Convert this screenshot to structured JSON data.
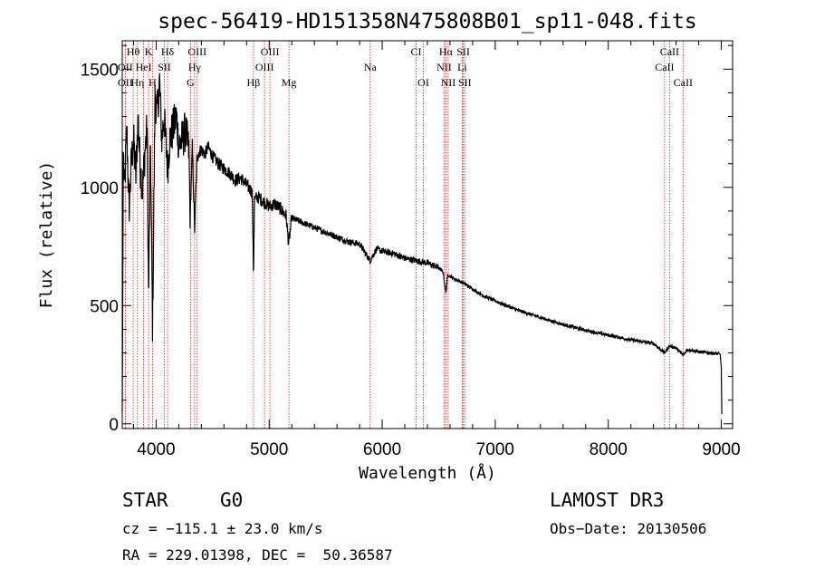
{
  "chart_data": {
    "type": "line",
    "title": "spec-56419-HD151358N475808B01_sp11-048.fits",
    "xlabel": "Wavelength (Å)",
    "ylabel": "Flux (relative)",
    "xlim": [
      3700,
      9100
    ],
    "ylim": [
      -20,
      1620
    ],
    "xticks": [
      4000,
      5000,
      6000,
      7000,
      8000,
      9000
    ],
    "yticks": [
      0,
      500,
      1000,
      1500
    ],
    "series": [
      {
        "name": "flux",
        "x": [
          3700,
          3710,
          3720,
          3740,
          3760,
          3780,
          3800,
          3820,
          3840,
          3860,
          3880,
          3900,
          3920,
          3933,
          3950,
          3968,
          3990,
          4010,
          4030,
          4050,
          4070,
          4101,
          4120,
          4150,
          4180,
          4200,
          4230,
          4260,
          4290,
          4300,
          4320,
          4340,
          4360,
          4380,
          4400,
          4430,
          4460,
          4500,
          4550,
          4600,
          4650,
          4700,
          4750,
          4800,
          4850,
          4861,
          4870,
          4900,
          4950,
          5000,
          5050,
          5100,
          5150,
          5172,
          5200,
          5250,
          5300,
          5400,
          5500,
          5600,
          5700,
          5800,
          5893,
          5950,
          6000,
          6100,
          6200,
          6300,
          6400,
          6500,
          6540,
          6563,
          6580,
          6600,
          6650,
          6700,
          6800,
          6900,
          7000,
          7200,
          7400,
          7600,
          7800,
          8000,
          8200,
          8400,
          8498,
          8542,
          8600,
          8662,
          8700,
          8800,
          8900,
          8990,
          9000,
          9005
        ],
        "y": [
          50,
          1150,
          980,
          1250,
          900,
          1100,
          1200,
          1050,
          1300,
          1080,
          1000,
          1150,
          1250,
          520,
          1180,
          400,
          1380,
          1320,
          1450,
          1200,
          1300,
          1080,
          1200,
          1250,
          1300,
          1180,
          1200,
          1240,
          1150,
          850,
          1180,
          820,
          1120,
          1150,
          1160,
          1140,
          1170,
          1130,
          1100,
          1080,
          1060,
          1030,
          1040,
          1010,
          980,
          620,
          950,
          960,
          940,
          920,
          930,
          910,
          880,
          760,
          870,
          860,
          850,
          830,
          810,
          790,
          770,
          760,
          690,
          740,
          730,
          720,
          700,
          690,
          680,
          660,
          640,
          550,
          630,
          625,
          610,
          600,
          570,
          540,
          520,
          480,
          450,
          420,
          395,
          375,
          355,
          340,
          300,
          330,
          320,
          290,
          315,
          305,
          300,
          295,
          240,
          40
        ]
      }
    ],
    "lines": [
      {
        "name": "Hθ",
        "wl": 3797,
        "pos": "top",
        "row": 0
      },
      {
        "name": "OII",
        "wl": 3727,
        "pos": "top",
        "row": 1
      },
      {
        "name": "OII",
        "wl": 3727,
        "pos": "top",
        "row": 2
      },
      {
        "name": "Hη",
        "wl": 3835,
        "pos": "top",
        "row": 2
      },
      {
        "name": "HeI",
        "wl": 3889,
        "pos": "top",
        "row": 1
      },
      {
        "name": "K",
        "wl": 3933,
        "pos": "top",
        "row": 0
      },
      {
        "name": "H",
        "wl": 3968,
        "pos": "top",
        "row": 2
      },
      {
        "name": "SII",
        "wl": 4072,
        "pos": "top",
        "row": 1
      },
      {
        "name": "Hδ",
        "wl": 4101,
        "pos": "top",
        "row": 0
      },
      {
        "name": "OIII",
        "wl": 4363,
        "pos": "top",
        "row": 0
      },
      {
        "name": "Hγ",
        "wl": 4340,
        "pos": "top",
        "row": 1
      },
      {
        "name": "G",
        "wl": 4304,
        "pos": "top",
        "row": 2
      },
      {
        "name": "Hβ",
        "wl": 4861,
        "pos": "top",
        "row": 2
      },
      {
        "name": "OIII",
        "wl": 5007,
        "pos": "top",
        "row": 0
      },
      {
        "name": "OIII",
        "wl": 4959,
        "pos": "top",
        "row": 1
      },
      {
        "name": "Mg",
        "wl": 5175,
        "pos": "top",
        "row": 2
      },
      {
        "name": "Na",
        "wl": 5893,
        "pos": "top",
        "row": 1
      },
      {
        "name": "CI",
        "wl": 6300,
        "pos": "top",
        "row": 0
      },
      {
        "name": "OI",
        "wl": 6364,
        "pos": "top",
        "row": 2
      },
      {
        "name": "Hα",
        "wl": 6563,
        "pos": "top",
        "row": 0
      },
      {
        "name": "NII",
        "wl": 6548,
        "pos": "top",
        "row": 1
      },
      {
        "name": "NII",
        "wl": 6584,
        "pos": "top",
        "row": 2
      },
      {
        "name": "SII",
        "wl": 6717,
        "pos": "top",
        "row": 0
      },
      {
        "name": "Li",
        "wl": 6708,
        "pos": "top",
        "row": 1
      },
      {
        "name": "SII",
        "wl": 6731,
        "pos": "top",
        "row": 2
      },
      {
        "name": "CaII",
        "wl": 8542,
        "pos": "top",
        "row": 0
      },
      {
        "name": "CaII",
        "wl": 8498,
        "pos": "top",
        "row": 1
      },
      {
        "name": "CaII",
        "wl": 8662,
        "pos": "top",
        "row": 2
      }
    ]
  },
  "info": {
    "class": "STAR",
    "subclass": "G0",
    "survey": "LAMOST DR3",
    "cz": "cz = −115.1 ± 23.0 km/s",
    "obsdate": "Obs−Date: 20130506",
    "radec": "RA = 229.01398, DEC =  50.36587"
  },
  "colors": {
    "line_marker": "#cc2222",
    "spectrum": "#000000"
  }
}
